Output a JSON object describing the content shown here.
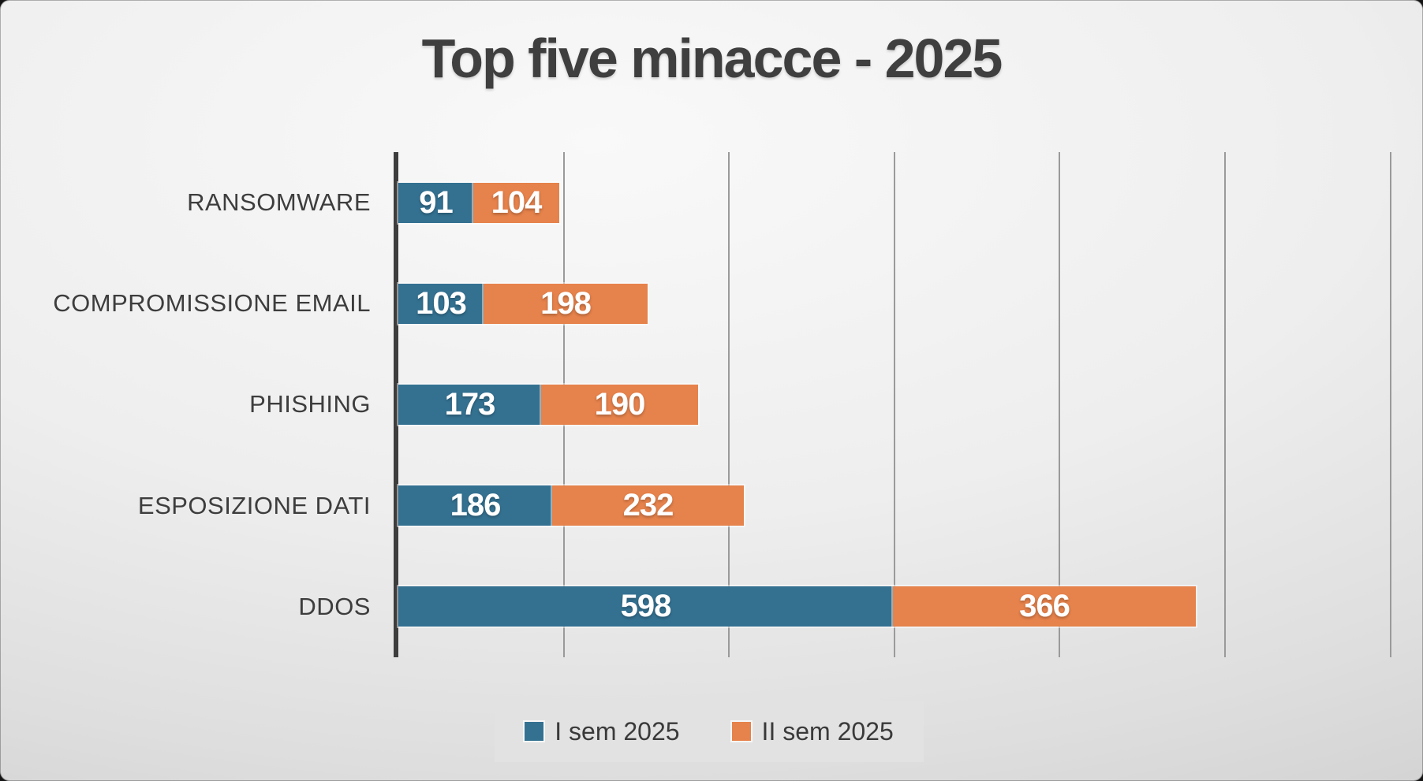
{
  "chart_data": {
    "type": "bar",
    "orientation": "horizontal",
    "stacked": true,
    "title": "Top five minacce - 2025",
    "categories": [
      "RANSOMWARE",
      "COMPROMISSIONE EMAIL",
      "PHISHING",
      "ESPOSIZIONE DATI",
      "DDOS"
    ],
    "series": [
      {
        "name": "I sem 2025",
        "color": "#347191",
        "values": [
          91,
          103,
          173,
          186,
          598
        ]
      },
      {
        "name": "II sem 2025",
        "color": "#E6824B",
        "values": [
          104,
          198,
          190,
          232,
          366
        ]
      }
    ],
    "xlim": [
      0,
      1200
    ],
    "gridline_interval": 200,
    "grid": true,
    "legend_position": "bottom",
    "data_labels": "inside-center"
  },
  "colors": {
    "series_1": "#347191",
    "series_2": "#E6824B",
    "title_text": "#3f3f3f",
    "category_text": "#3d3d3d",
    "axis_line": "#3d3d3d",
    "gridline": "#9a9a9a",
    "legend_background": "#e2e2e2",
    "value_label_text": "#ffffff"
  }
}
